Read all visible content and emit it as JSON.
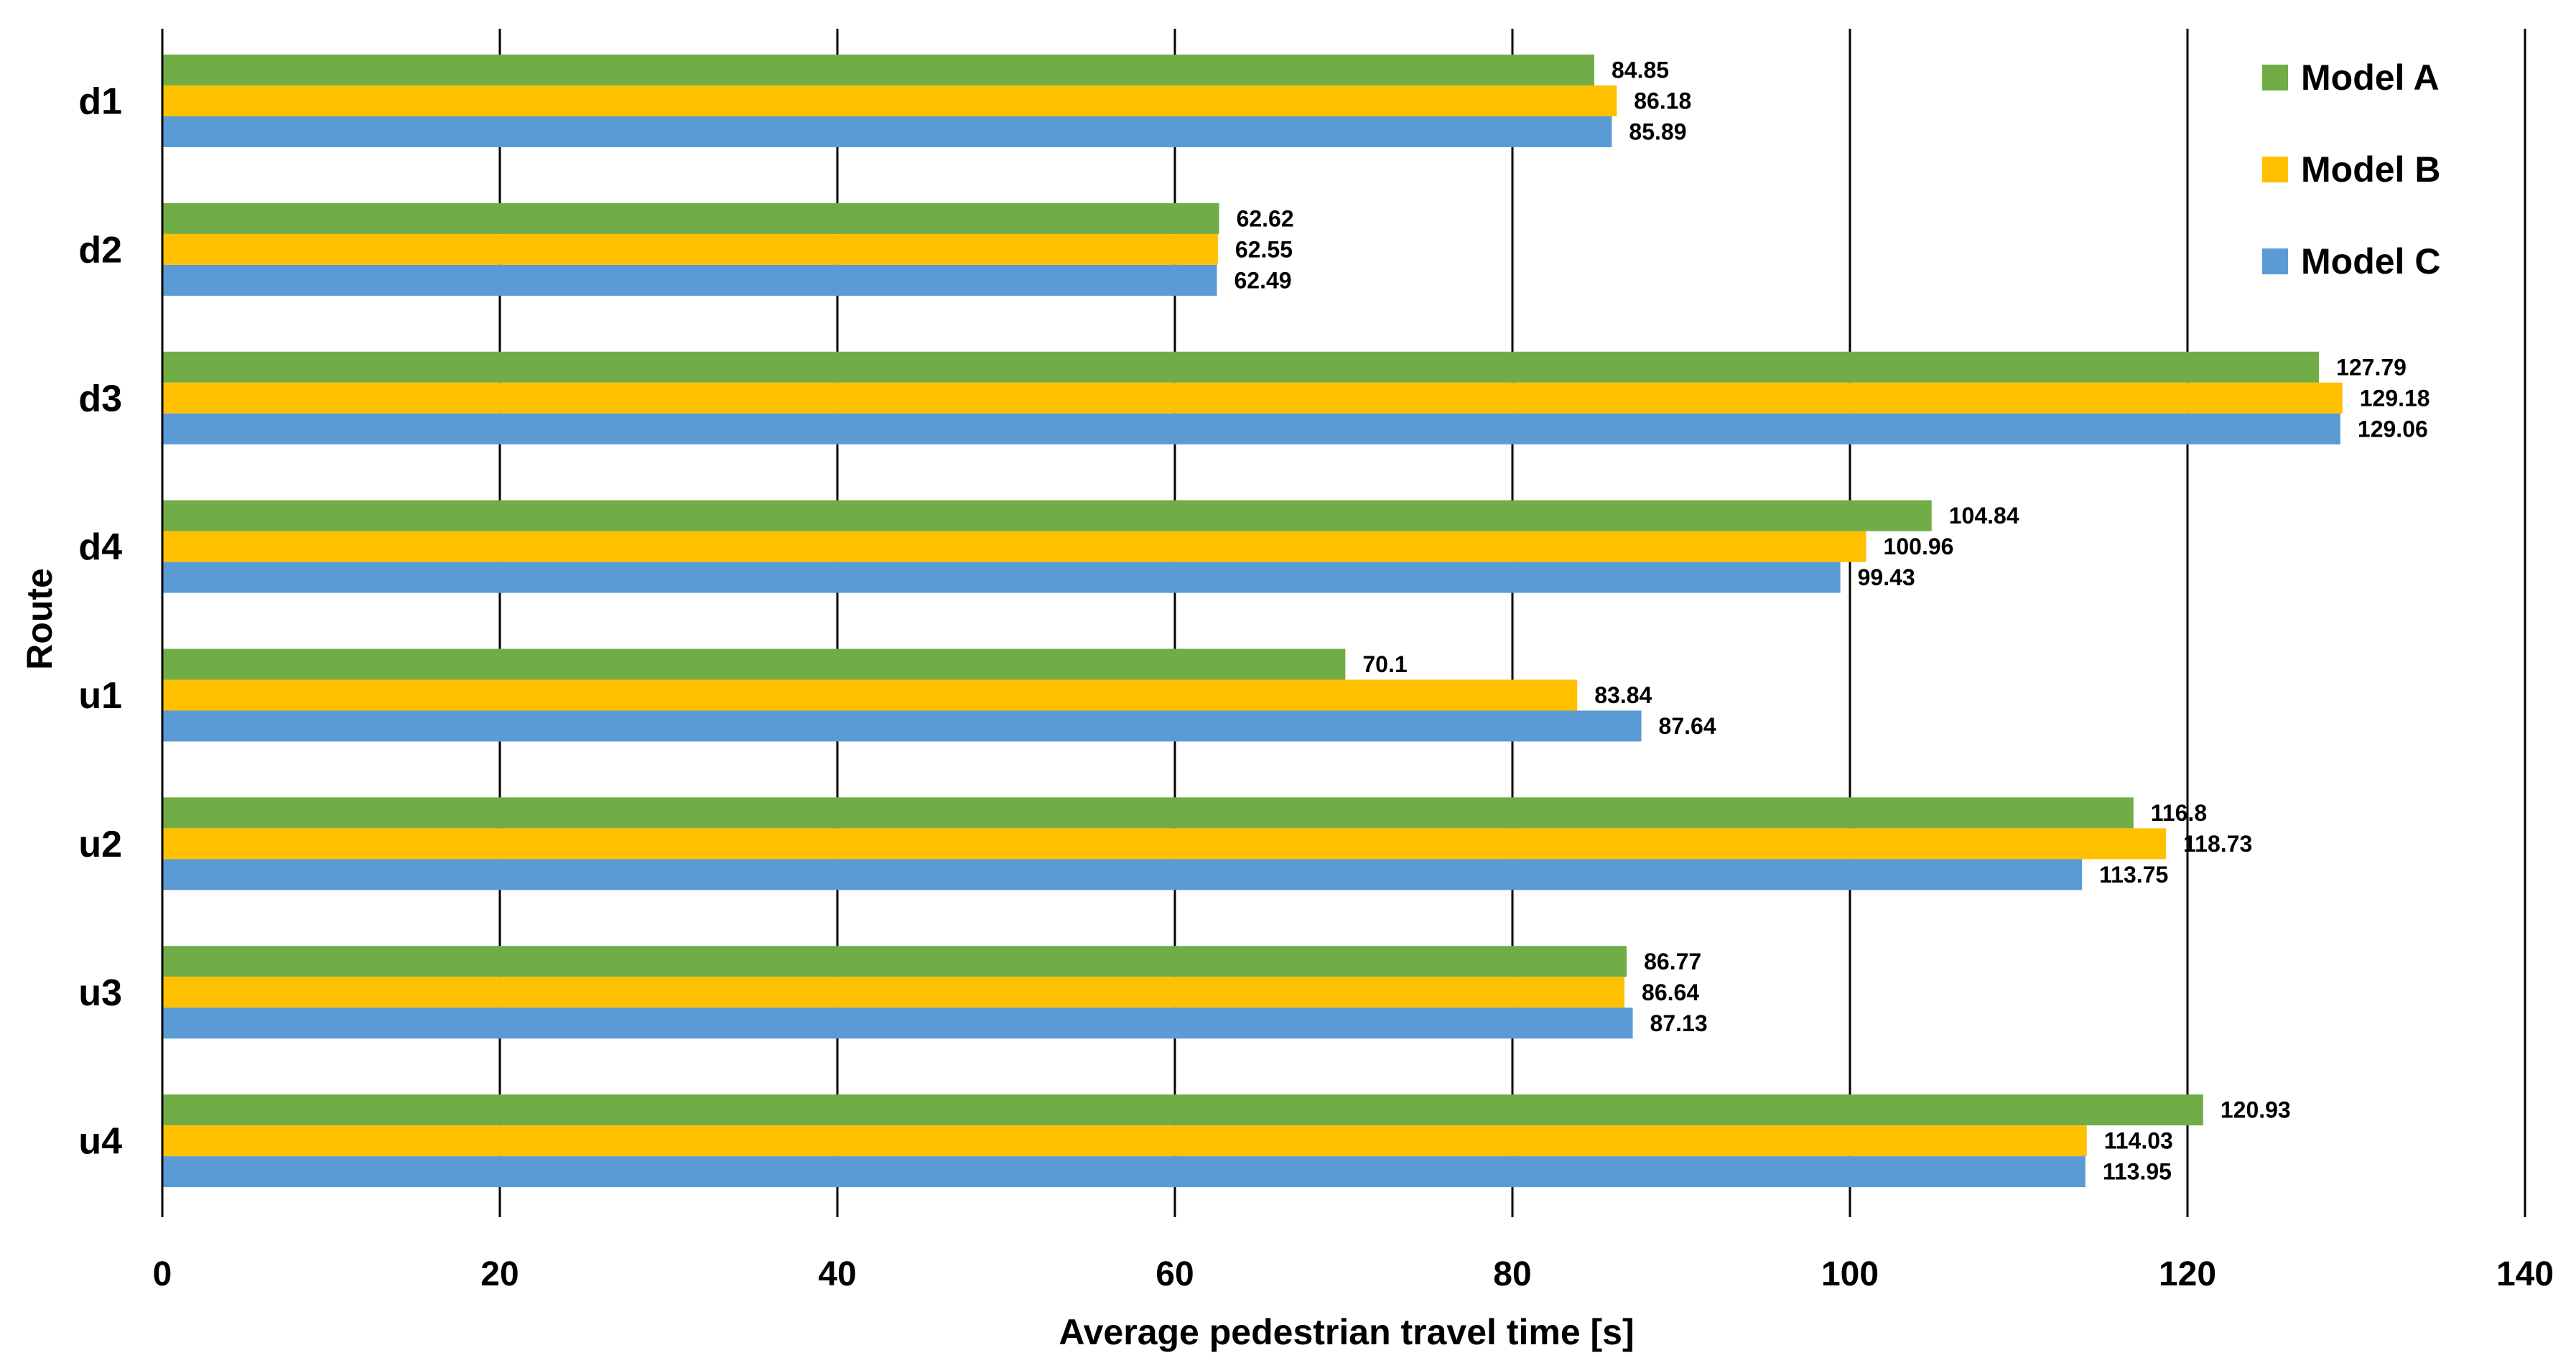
{
  "chart_data": {
    "type": "bar",
    "orientation": "horizontal",
    "title": "",
    "xlabel": "Average pedestrian travel time [s]",
    "ylabel": "Route",
    "xlim": [
      0,
      140
    ],
    "xticks": [
      0,
      20,
      40,
      60,
      80,
      100,
      120,
      140
    ],
    "grid": "vertical",
    "legend_position": "top-right",
    "categories": [
      "d1",
      "d2",
      "d3",
      "d4",
      "u1",
      "u2",
      "u3",
      "u4"
    ],
    "series": [
      {
        "name": "Model A",
        "color": "#70AD47",
        "values": [
          84.85,
          62.62,
          127.79,
          104.84,
          70.1,
          116.8,
          86.77,
          120.93
        ]
      },
      {
        "name": "Model B",
        "color": "#FFC000",
        "values": [
          86.18,
          62.55,
          129.18,
          100.96,
          83.84,
          118.73,
          86.64,
          114.03
        ]
      },
      {
        "name": "Model C",
        "color": "#5B9BD5",
        "values": [
          85.89,
          62.49,
          129.06,
          99.43,
          87.64,
          113.75,
          87.13,
          113.95
        ]
      }
    ]
  }
}
